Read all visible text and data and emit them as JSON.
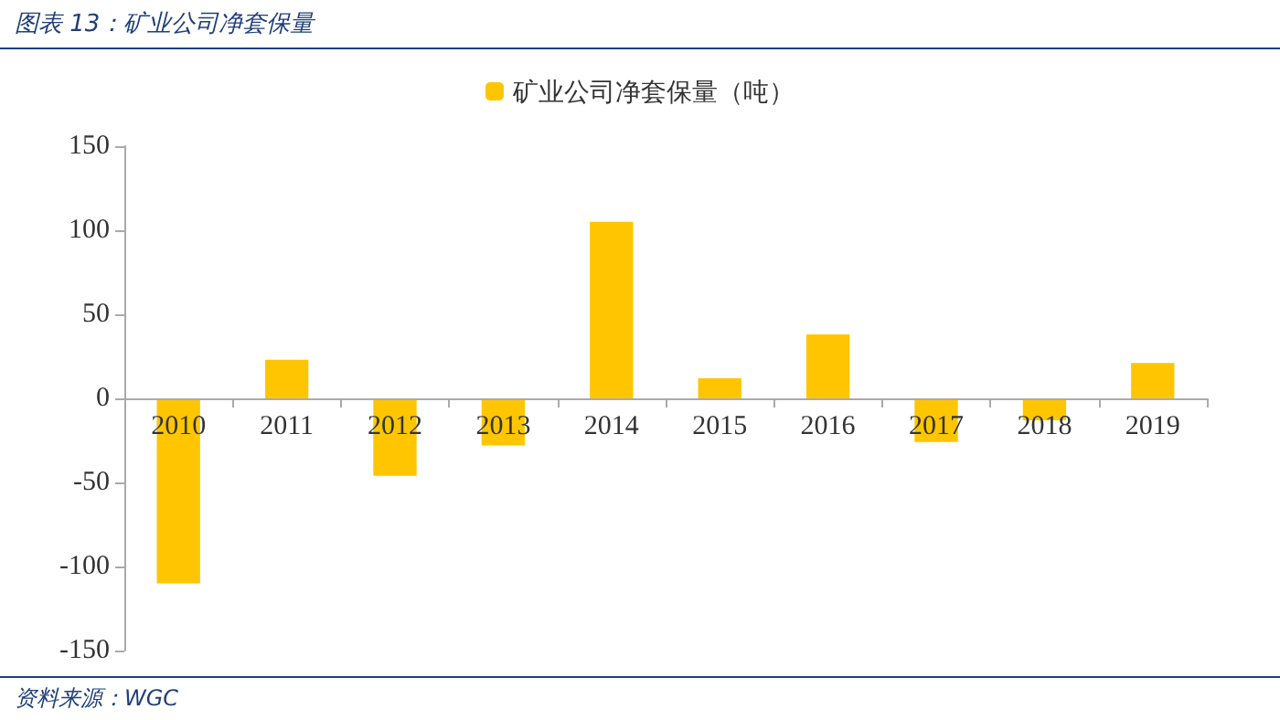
{
  "chart_data": {
    "type": "bar",
    "title": "图表 13：矿业公司净套保量",
    "categories": [
      "2010",
      "2011",
      "2012",
      "2013",
      "2014",
      "2015",
      "2016",
      "2017",
      "2018",
      "2019"
    ],
    "series": [
      {
        "name": "矿业公司净套保量（吨）",
        "color": "#ffc600",
        "values": [
          -110,
          23,
          -46,
          -28,
          105,
          12,
          38,
          -26,
          -13,
          21
        ]
      }
    ],
    "ylim": [
      -150,
      150
    ],
    "yticks": [
      -150,
      -100,
      -50,
      0,
      50,
      100,
      150
    ],
    "legend": "top",
    "annotations": [
      "资料来源：WGC"
    ]
  }
}
